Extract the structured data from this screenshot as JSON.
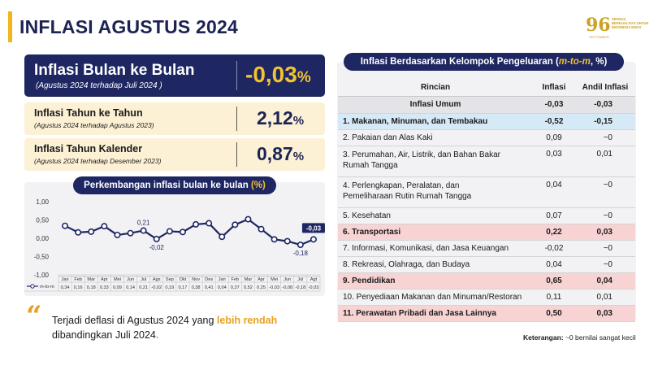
{
  "page": {
    "title": "INFLASI AGUSTUS 2024"
  },
  "logo": {
    "number": "96",
    "text": "SENSUS BERKUALITAS UNTUK INDONESIA EMAS",
    "sub": "SEPTEMBER",
    "accent_color": "#c9a227"
  },
  "mom": {
    "title": "Inflasi Bulan ke Bulan",
    "subtitle": "(Agustus 2024 terhadap Juli 2024 )",
    "value": "-0,03",
    "unit": "%"
  },
  "yoy": {
    "title": "Inflasi Tahun ke Tahun",
    "subtitle": "(Agustus 2024 terhadap Agustus 2023)",
    "value": "2,12",
    "unit": "%"
  },
  "ytd": {
    "title": "Inflasi Tahun Kalender",
    "subtitle": "(Agustus 2024 terhadap Desember 2023)",
    "value": "0,87",
    "unit": "%"
  },
  "chart_section": {
    "title_main": "Perkembangan inflasi bulan ke bulan",
    "title_unit": "(%)"
  },
  "chart_data": {
    "type": "line",
    "categories": [
      "Jan",
      "Feb",
      "Mar",
      "Apr",
      "Mei",
      "Jun",
      "Jul",
      "Ags",
      "Sep",
      "Okt",
      "Nov",
      "Des",
      "Jan",
      "Feb",
      "Mar",
      "Apr",
      "Mei",
      "Jun",
      "Jul",
      "Agt"
    ],
    "series": [
      {
        "name": "m-to-m",
        "values": [
          0.34,
          0.16,
          0.18,
          0.33,
          0.09,
          0.14,
          0.21,
          -0.02,
          0.19,
          0.17,
          0.38,
          0.41,
          0.04,
          0.37,
          0.52,
          0.25,
          -0.03,
          -0.08,
          -0.18,
          -0.03
        ]
      }
    ],
    "table_values": [
      "0,34",
      "0,16",
      "0,18",
      "0,33",
      "0,09",
      "0,14",
      "0,21",
      "-0,02",
      "0,19",
      "0,17",
      "0,38",
      "0,41",
      "0,04",
      "0,37",
      "0,52",
      "0,25",
      "-0,03",
      "-0,08",
      "-0,18",
      "-0,03"
    ],
    "annotations": [
      {
        "index": 6,
        "label": "0,21"
      },
      {
        "index": 7,
        "label": "-0,02"
      },
      {
        "index": 18,
        "label": "-0,18"
      },
      {
        "index": 19,
        "label": "-0,03",
        "highlight": true
      }
    ],
    "y_ticks": [
      "1,00",
      "0,50",
      "0,00",
      "-0,50",
      "-1,00"
    ],
    "ylim": [
      -1.0,
      1.0
    ],
    "line_color": "#1e2761",
    "marker_fill": "#ffffff",
    "grid": false
  },
  "quote": {
    "before": "Terjadi deflasi di Agustus 2024 yang ",
    "highlight": "lebih rendah",
    "after": " dibandingkan Juli 2024",
    "period": "."
  },
  "table": {
    "title_main": "Inflasi Berdasarkan Kelompok Pengeluaran (",
    "title_italic": "m-to-m",
    "title_end": ", %)",
    "headers": [
      "Rincian",
      "Inflasi",
      "Andil Inflasi"
    ],
    "rows": [
      {
        "label": "Inflasi Umum",
        "inflasi": "-0,03",
        "andil": "-0,03",
        "style": "umum"
      },
      {
        "label": "1.  Makanan, Minuman, dan Tembakau",
        "inflasi": "-0,52",
        "andil": "-0,15",
        "style": "blue"
      },
      {
        "label": "2.  Pakaian dan Alas Kaki",
        "inflasi": "0,09",
        "andil": "~0",
        "style": ""
      },
      {
        "label": "3.  Perumahan, Air, Listrik, dan Bahan Bakar Rumah Tangga",
        "inflasi": "0,03",
        "andil": "0,01",
        "style": "tall"
      },
      {
        "label": "4.  Perlengkapan, Peralatan, dan Pemeliharaan Rutin Rumah Tangga",
        "inflasi": "0,04",
        "andil": "~0",
        "style": "tall"
      },
      {
        "label": "5.  Kesehatan",
        "inflasi": "0,07",
        "andil": "~0",
        "style": ""
      },
      {
        "label": "6.  Transportasi",
        "inflasi": "0,22",
        "andil": "0,03",
        "style": "pink"
      },
      {
        "label": "7.  Informasi, Komunikasi, dan Jasa Keuangan",
        "inflasi": "-0,02",
        "andil": "~0",
        "style": ""
      },
      {
        "label": "8.  Rekreasi, Olahraga, dan Budaya",
        "inflasi": "0,04",
        "andil": "~0",
        "style": ""
      },
      {
        "label": "9.  Pendidikan",
        "inflasi": "0,65",
        "andil": "0,04",
        "style": "pink"
      },
      {
        "label": "10. Penyediaan Makanan dan Minuman/Restoran",
        "inflasi": "0,11",
        "andil": "0,01",
        "style": ""
      },
      {
        "label": "11. Perawatan Pribadi dan Jasa Lainnya",
        "inflasi": "0,50",
        "andil": "0,03",
        "style": "pink"
      }
    ]
  },
  "note": {
    "label": "Keterangan:",
    "text": " ~0 bernilai sangat kecil"
  },
  "colors": {
    "navy": "#1e2761",
    "gold": "#f2c230",
    "orange": "#e8a020",
    "cream": "#fcf1d5",
    "light_blue": "#d6e9f6",
    "pink": "#f7d3d4"
  }
}
